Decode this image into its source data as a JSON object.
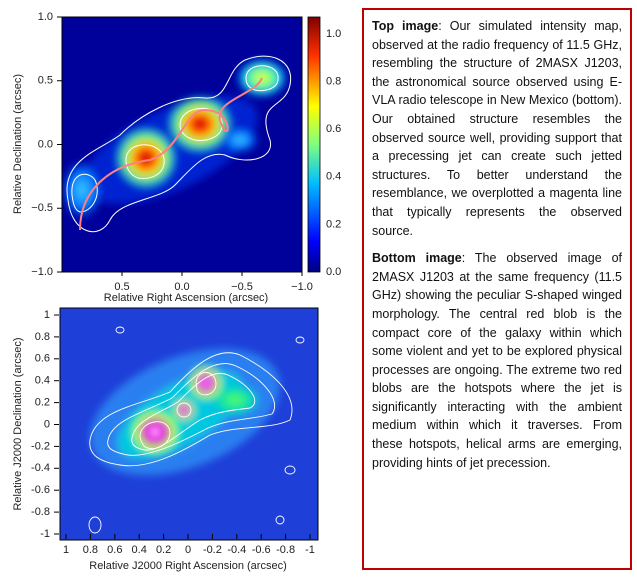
{
  "figure": {
    "top": {
      "y_label": "Relative Declination (arcsec)",
      "x_label": "Relative Right Ascension (arcsec)",
      "y_ticks": [
        "1.0",
        "0.5",
        "0.0",
        "−0.5",
        "−1.0"
      ],
      "x_ticks": [
        "0.5",
        "0.0",
        "−0.5",
        "−1.0"
      ],
      "colorbar_ticks": [
        "1.0",
        "0.8",
        "0.6",
        "0.4",
        "0.2",
        "0.0"
      ]
    },
    "bottom": {
      "y_label": "Relative J2000 Declination (arcsec)",
      "x_label": "Relative J2000 Right Ascension (arcsec)",
      "y_ticks": [
        "1",
        "0.8",
        "0.6",
        "0.4",
        "0.2",
        "0",
        "-0.2",
        "-0.4",
        "-0.6",
        "-0.8",
        "-1"
      ],
      "x_ticks": [
        "1",
        "0.8",
        "0.6",
        "0.4",
        "0.2",
        "0",
        "-0.2",
        "-0.4",
        "-0.6",
        "-0.8",
        "-1"
      ]
    }
  },
  "caption": {
    "paragraphs": [
      {
        "lead": "Top image",
        "text": ": Our simulated intensity map, observed at the radio frequency of 11.5 GHz, resembling the structure of 2MASX J1203, the astronomical source observed using E-VLA radio telescope in New Mexico (bottom). Our obtained structure resembles the observed source well, providing support that a precessing jet can create such jetted structures. To better understand the resemblance, we overplotted a magenta line that typically represents the observed source."
      },
      {
        "lead": "Bottom image",
        "text": ": The observed image of 2MASX J1203 at the same frequency (11.5 GHz) showing the peculiar S-shaped winged morphology. The central red blob is the compact core of the galaxy within which some violent and yet to be explored physical processes are ongoing. The extreme two red blobs are the hotspots where the jet is significantly interacting with the ambient medium within which it traverses. From these hotspots, helical arms are emerging, providing hints of jet precession."
      }
    ]
  }
}
